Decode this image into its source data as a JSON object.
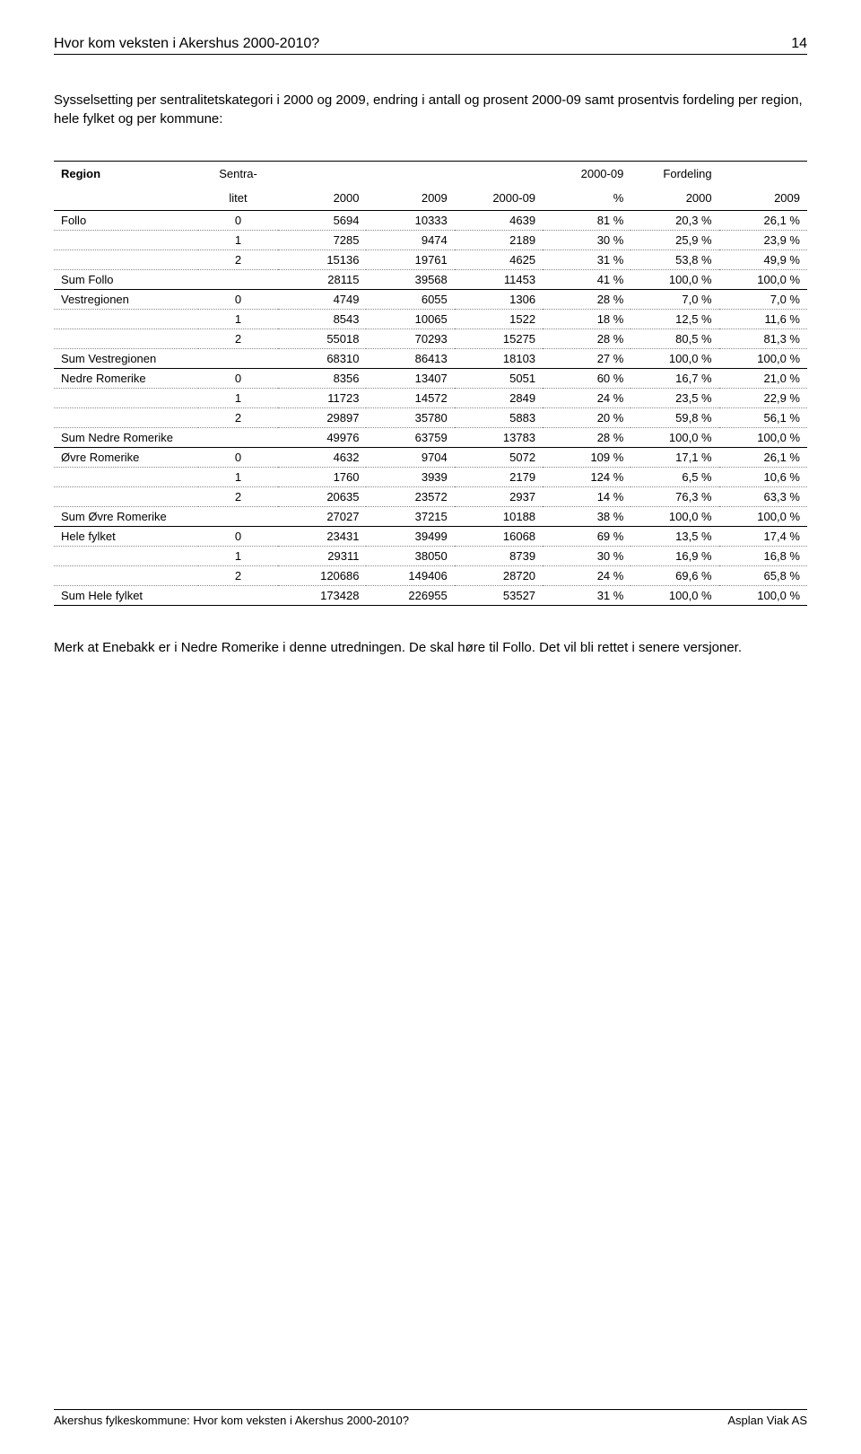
{
  "header": {
    "title": "Hvor kom veksten i Akershus 2000-2010?",
    "page_number": "14"
  },
  "intro": "Sysselsetting per sentralitetskategori i 2000 og 2009, endring i antall og prosent 2000-09 samt prosentvis fordeling per region, hele fylket og per kommune:",
  "table": {
    "head1": [
      "Region",
      "Sentra-",
      "",
      "",
      "",
      "2000-09",
      "Fordeling",
      ""
    ],
    "head2": [
      "",
      "litet",
      "2000",
      "2009",
      "2000-09",
      "%",
      "2000",
      "2009"
    ],
    "rows": [
      {
        "r": "Follo",
        "s": "0",
        "a": "5694",
        "b": "10333",
        "c": "4639",
        "d": "81 %",
        "e": "20,3 %",
        "f": "26,1 %",
        "sum": false
      },
      {
        "r": "",
        "s": "1",
        "a": "7285",
        "b": "9474",
        "c": "2189",
        "d": "30 %",
        "e": "25,9 %",
        "f": "23,9 %",
        "sum": false
      },
      {
        "r": "",
        "s": "2",
        "a": "15136",
        "b": "19761",
        "c": "4625",
        "d": "31 %",
        "e": "53,8 %",
        "f": "49,9 %",
        "sum": false
      },
      {
        "r": "Sum Follo",
        "s": "",
        "a": "28115",
        "b": "39568",
        "c": "11453",
        "d": "41 %",
        "e": "100,0 %",
        "f": "100,0 %",
        "sum": true
      },
      {
        "r": "Vestregionen",
        "s": "0",
        "a": "4749",
        "b": "6055",
        "c": "1306",
        "d": "28 %",
        "e": "7,0 %",
        "f": "7,0 %",
        "sum": false
      },
      {
        "r": "",
        "s": "1",
        "a": "8543",
        "b": "10065",
        "c": "1522",
        "d": "18 %",
        "e": "12,5 %",
        "f": "11,6 %",
        "sum": false
      },
      {
        "r": "",
        "s": "2",
        "a": "55018",
        "b": "70293",
        "c": "15275",
        "d": "28 %",
        "e": "80,5 %",
        "f": "81,3 %",
        "sum": false
      },
      {
        "r": "Sum Vestregionen",
        "s": "",
        "a": "68310",
        "b": "86413",
        "c": "18103",
        "d": "27 %",
        "e": "100,0 %",
        "f": "100,0 %",
        "sum": true
      },
      {
        "r": "Nedre Romerike",
        "s": "0",
        "a": "8356",
        "b": "13407",
        "c": "5051",
        "d": "60 %",
        "e": "16,7 %",
        "f": "21,0 %",
        "sum": false
      },
      {
        "r": "",
        "s": "1",
        "a": "11723",
        "b": "14572",
        "c": "2849",
        "d": "24 %",
        "e": "23,5 %",
        "f": "22,9 %",
        "sum": false
      },
      {
        "r": "",
        "s": "2",
        "a": "29897",
        "b": "35780",
        "c": "5883",
        "d": "20 %",
        "e": "59,8 %",
        "f": "56,1 %",
        "sum": false
      },
      {
        "r": "Sum Nedre Romerike",
        "s": "",
        "a": "49976",
        "b": "63759",
        "c": "13783",
        "d": "28 %",
        "e": "100,0 %",
        "f": "100,0 %",
        "sum": true
      },
      {
        "r": "Øvre Romerike",
        "s": "0",
        "a": "4632",
        "b": "9704",
        "c": "5072",
        "d": "109 %",
        "e": "17,1 %",
        "f": "26,1 %",
        "sum": false
      },
      {
        "r": "",
        "s": "1",
        "a": "1760",
        "b": "3939",
        "c": "2179",
        "d": "124 %",
        "e": "6,5 %",
        "f": "10,6 %",
        "sum": false
      },
      {
        "r": "",
        "s": "2",
        "a": "20635",
        "b": "23572",
        "c": "2937",
        "d": "14 %",
        "e": "76,3 %",
        "f": "63,3 %",
        "sum": false
      },
      {
        "r": "Sum Øvre Romerike",
        "s": "",
        "a": "27027",
        "b": "37215",
        "c": "10188",
        "d": "38 %",
        "e": "100,0 %",
        "f": "100,0 %",
        "sum": true
      },
      {
        "r": "Hele fylket",
        "s": "0",
        "a": "23431",
        "b": "39499",
        "c": "16068",
        "d": "69 %",
        "e": "13,5 %",
        "f": "17,4 %",
        "sum": false
      },
      {
        "r": "",
        "s": "1",
        "a": "29311",
        "b": "38050",
        "c": "8739",
        "d": "30 %",
        "e": "16,9 %",
        "f": "16,8 %",
        "sum": false
      },
      {
        "r": "",
        "s": "2",
        "a": "120686",
        "b": "149406",
        "c": "28720",
        "d": "24 %",
        "e": "69,6 %",
        "f": "65,8 %",
        "sum": false
      },
      {
        "r": "Sum Hele fylket",
        "s": "",
        "a": "173428",
        "b": "226955",
        "c": "53527",
        "d": "31 %",
        "e": "100,0 %",
        "f": "100,0 %",
        "sum": true
      }
    ]
  },
  "note": "Merk at Enebakk er i Nedre Romerike i denne utredningen. De skal høre til Follo. Det vil bli rettet i senere versjoner.",
  "footer": {
    "left": "Akershus fylkeskommune: Hvor kom veksten i Akershus 2000-2010?",
    "right": "Asplan Viak AS"
  }
}
